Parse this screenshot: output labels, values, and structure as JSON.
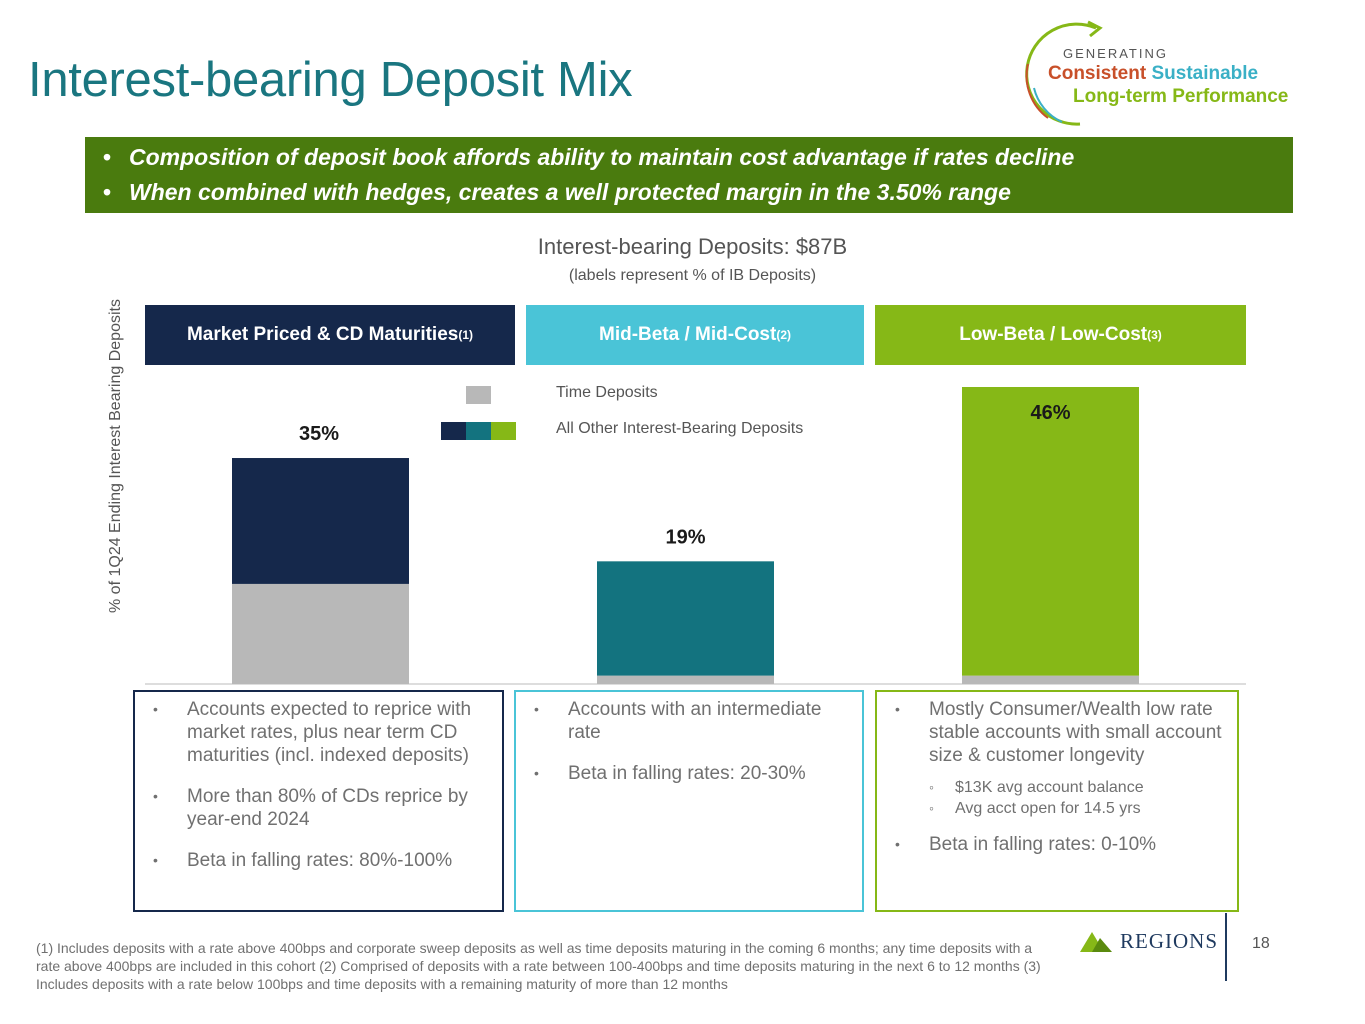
{
  "title": "Interest-bearing Deposit Mix",
  "logo": {
    "generating": "GENERATING",
    "consistent": "Consistent",
    "sustainable": "Sustainable",
    "long_term": "Long-term Performance",
    "consistent_color": "#c8502a",
    "sustainable_color": "#3ab0c6",
    "long_term_color": "#86b817"
  },
  "banner": {
    "bullet": "•",
    "items": [
      "Composition of deposit book affords ability to maintain cost advantage if rates decline",
      "When combined with hedges, creates a well protected margin in the 3.50% range"
    ]
  },
  "chart_data": {
    "type": "bar",
    "title": "Interest-bearing Deposits: $87B",
    "subtitle": "(labels represent % of IB Deposits)",
    "ylabel": "% of 1Q24 Ending Interest Bearing Deposits",
    "ylim": [
      0,
      50
    ],
    "categories": [
      {
        "name": "Market Priced & CD Maturities",
        "footnote": "(1)",
        "color": "#15284b"
      },
      {
        "name": "Mid-Beta / Mid-Cost",
        "footnote": "(2)",
        "color": "#4ac4d7"
      },
      {
        "name": "Low-Beta / Low-Cost",
        "footnote": "(3)",
        "color": "#86b817"
      }
    ],
    "labels": [
      "35%",
      "19%",
      "46%"
    ],
    "series": [
      {
        "name": "Time Deposits",
        "color": "#b8b8b8",
        "values": [
          15.5,
          1.3,
          1.3
        ]
      },
      {
        "name": "All Other Interest-Bearing Deposits",
        "colors": [
          "#15284b",
          "#13737f",
          "#86b817"
        ],
        "values": [
          19.5,
          17.7,
          44.7
        ]
      }
    ]
  },
  "descriptions": [
    {
      "border_color": "#15284b",
      "items": [
        {
          "text": "Accounts expected to reprice with market rates, plus near term CD maturities (incl. indexed deposits)"
        },
        {
          "text": "More than 80% of CDs reprice by year-end 2024"
        },
        {
          "text": "Beta in falling rates: 80%-100%"
        }
      ]
    },
    {
      "border_color": "#4ac4d7",
      "items": [
        {
          "text": "Accounts with an intermediate rate"
        },
        {
          "text": "Beta in falling rates: 20-30%"
        }
      ]
    },
    {
      "border_color": "#86b817",
      "items": [
        {
          "text": "Mostly Consumer/Wealth low rate stable accounts with small account size & customer longevity",
          "sub": [
            "$13K avg account balance",
            "Avg acct open for 14.5 yrs"
          ]
        },
        {
          "text": "Beta in falling rates: 0-10%"
        }
      ]
    }
  ],
  "footnote": "(1)  Includes deposits with a rate above 400bps and corporate sweep deposits as well as time deposits maturing in the coming 6 months; any time deposits with a rate above 400bps are included in this cohort (2) Comprised of deposits with a rate between 100-400bps and time deposits maturing in the next 6 to 12 months (3) Includes deposits with a rate below 100bps and time deposits with a remaining maturity of more than 12 months",
  "brand": "Regions",
  "page_number": "18"
}
